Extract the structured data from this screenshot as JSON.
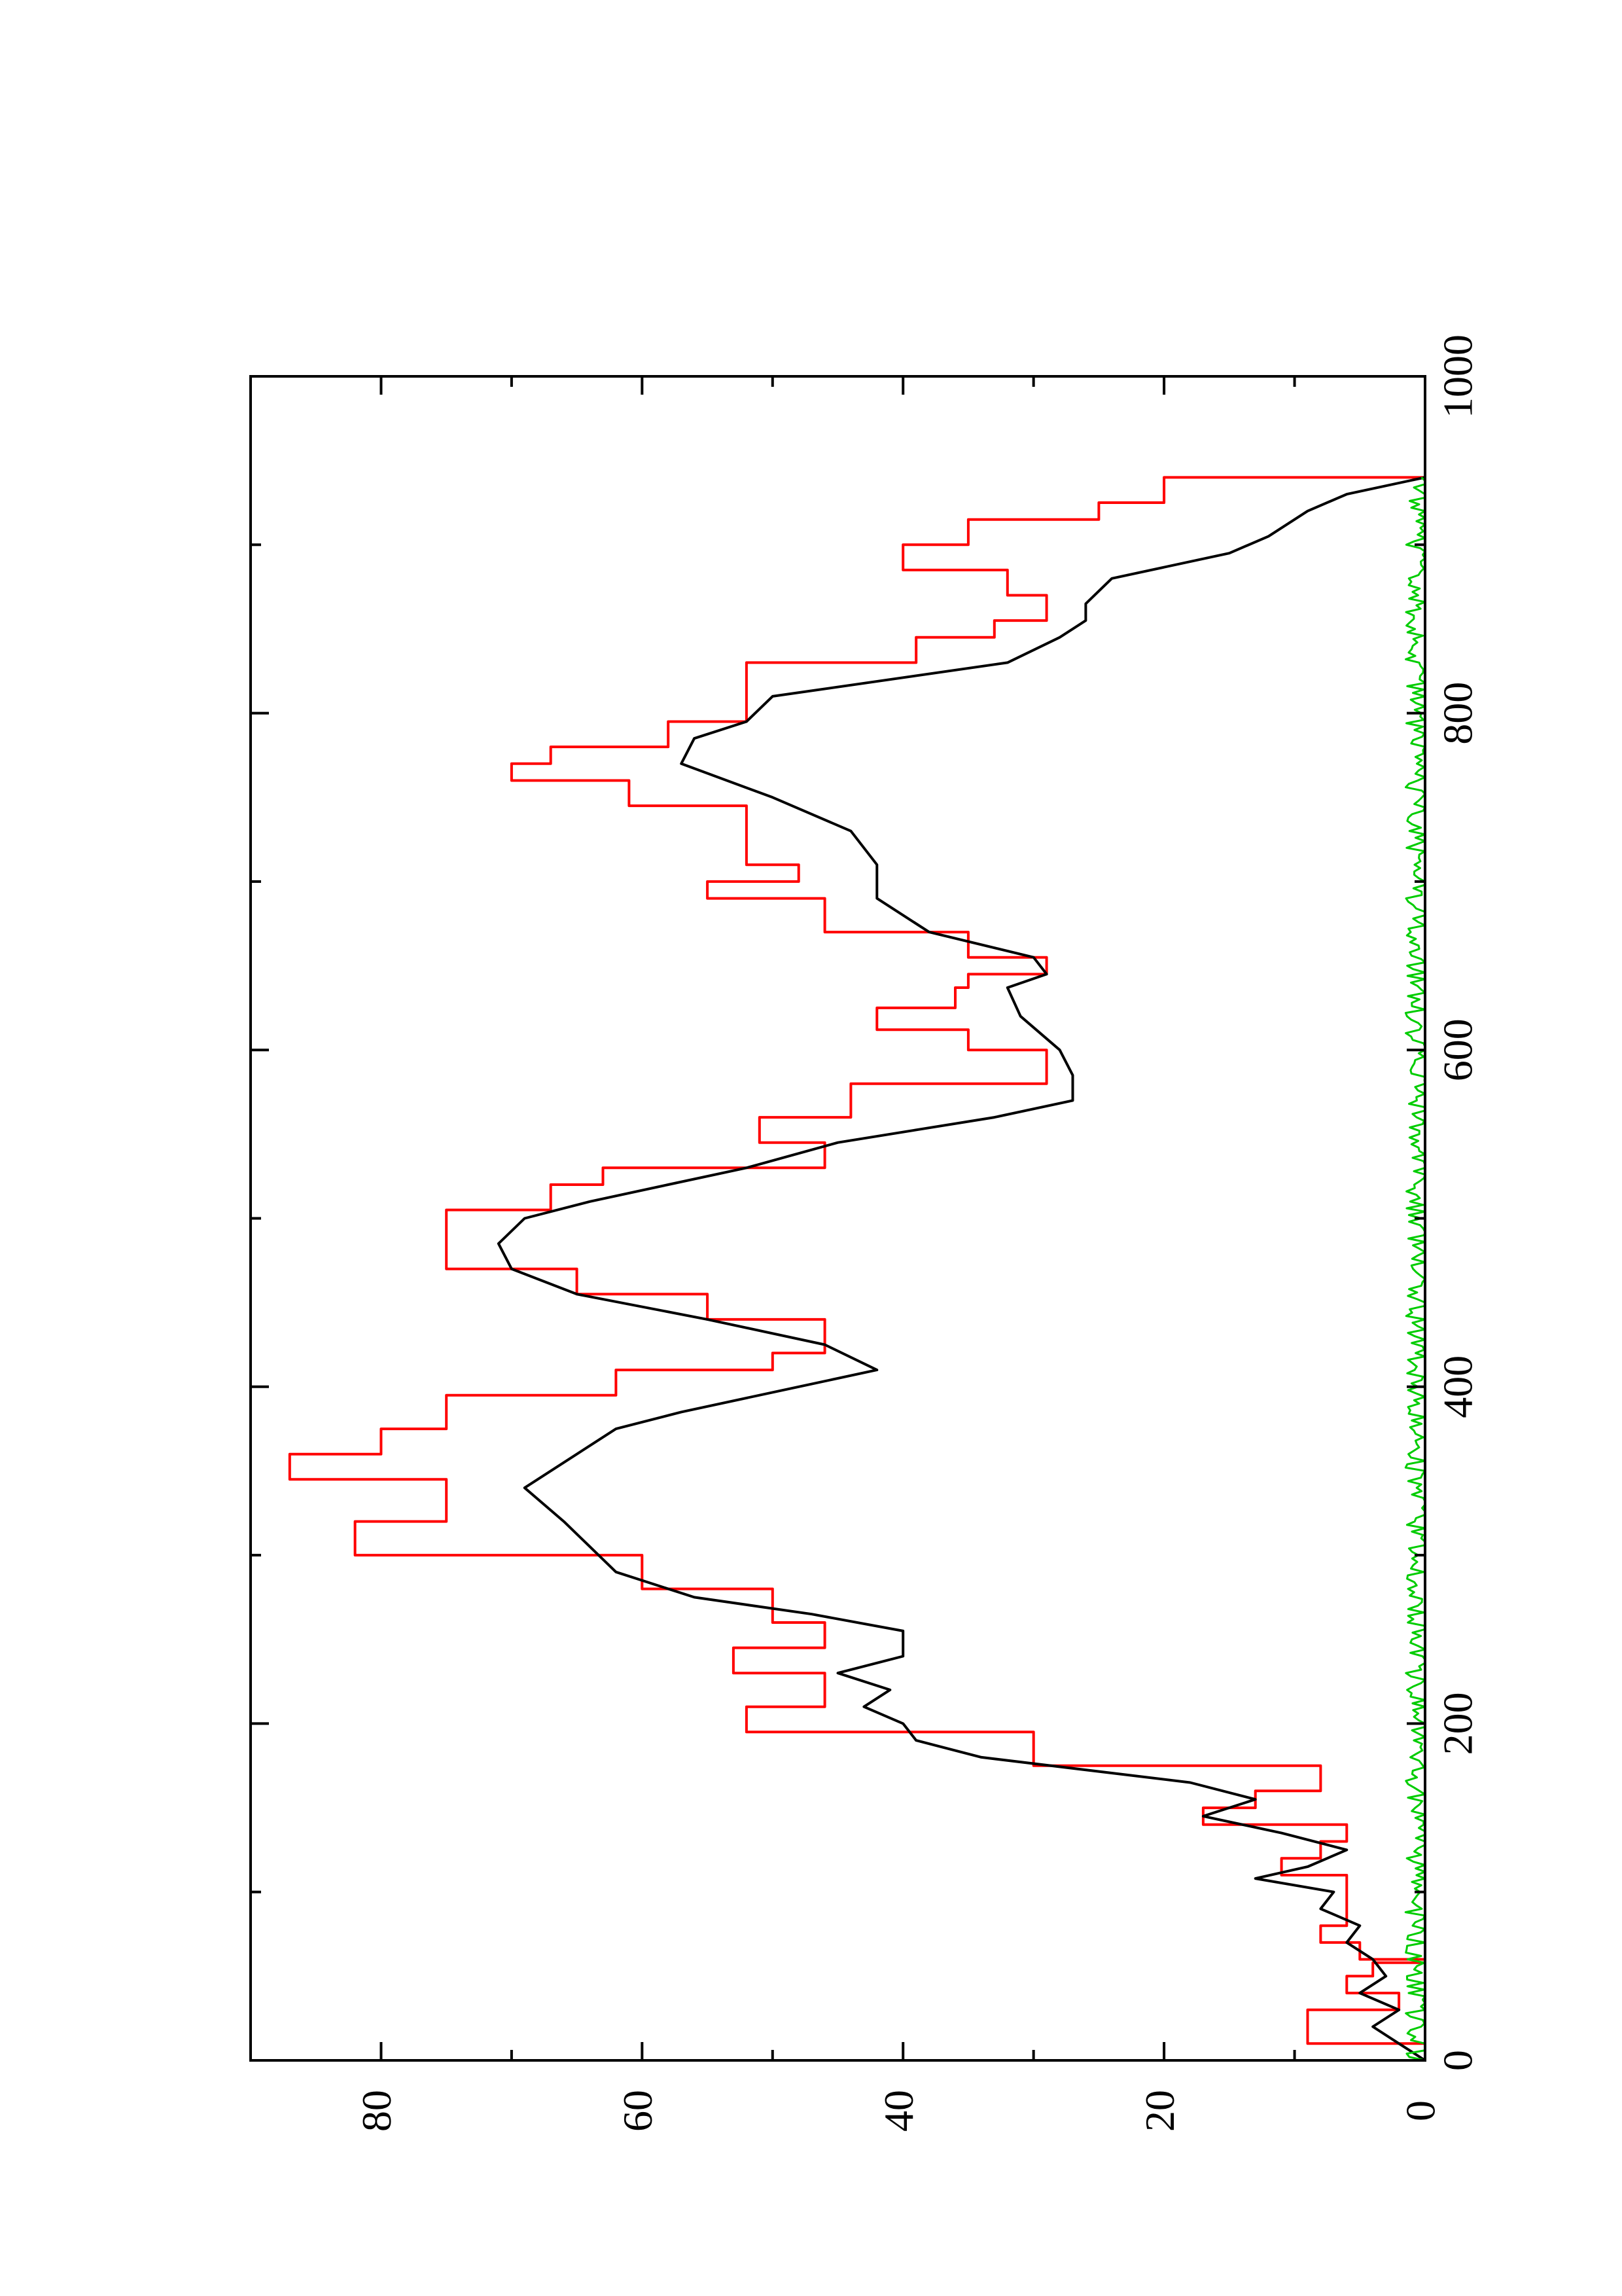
{
  "chart_data": {
    "type": "line",
    "orientation": "rotated-90-ccw",
    "title": "",
    "xlabel": "",
    "ylabel": "",
    "xlim": [
      0,
      1000
    ],
    "ylim": [
      0,
      90
    ],
    "x_ticks": [
      0,
      200,
      400,
      600,
      800,
      1000
    ],
    "y_ticks": [
      0,
      20,
      40,
      60,
      80
    ],
    "x_tick_labels": [
      "0",
      "200",
      "400",
      "600",
      "800",
      "1000"
    ],
    "y_tick_labels": [
      "0",
      "20",
      "40",
      "60",
      "80"
    ],
    "grid": false,
    "legend": "none",
    "series": [
      {
        "color": "#ff0000",
        "shape": "step",
        "points": [
          [
            0,
            0
          ],
          [
            10,
            9
          ],
          [
            20,
            9
          ],
          [
            30,
            2
          ],
          [
            40,
            6
          ],
          [
            50,
            4
          ],
          [
            58,
            0
          ],
          [
            60,
            5
          ],
          [
            70,
            8
          ],
          [
            80,
            6
          ],
          [
            90,
            6
          ],
          [
            100,
            6
          ],
          [
            110,
            11
          ],
          [
            120,
            8
          ],
          [
            130,
            6
          ],
          [
            140,
            17
          ],
          [
            150,
            13
          ],
          [
            160,
            8
          ],
          [
            175,
            30
          ],
          [
            195,
            52
          ],
          [
            210,
            46
          ],
          [
            220,
            46
          ],
          [
            230,
            53
          ],
          [
            245,
            46
          ],
          [
            260,
            50
          ],
          [
            280,
            60
          ],
          [
            300,
            82
          ],
          [
            320,
            75
          ],
          [
            335,
            75
          ],
          [
            345,
            87
          ],
          [
            360,
            80
          ],
          [
            375,
            75
          ],
          [
            395,
            62
          ],
          [
            410,
            50
          ],
          [
            420,
            46
          ],
          [
            440,
            55
          ],
          [
            455,
            65
          ],
          [
            470,
            75
          ],
          [
            490,
            75
          ],
          [
            505,
            67
          ],
          [
            520,
            63
          ],
          [
            530,
            46
          ],
          [
            545,
            51
          ],
          [
            560,
            44
          ],
          [
            580,
            29
          ],
          [
            600,
            35
          ],
          [
            612,
            42
          ],
          [
            625,
            36
          ],
          [
            637,
            35
          ],
          [
            645,
            29
          ],
          [
            655,
            35
          ],
          [
            670,
            46
          ],
          [
            690,
            55
          ],
          [
            700,
            48
          ],
          [
            710,
            52
          ],
          [
            730,
            52
          ],
          [
            745,
            61
          ],
          [
            760,
            70
          ],
          [
            770,
            67
          ],
          [
            780,
            58
          ],
          [
            795,
            52
          ],
          [
            810,
            52
          ],
          [
            830,
            39
          ],
          [
            845,
            33
          ],
          [
            855,
            29
          ],
          [
            870,
            32
          ],
          [
            885,
            40
          ],
          [
            900,
            35
          ],
          [
            915,
            25
          ],
          [
            925,
            20
          ],
          [
            940,
            0
          ]
        ]
      },
      {
        "color": "#000000",
        "shape": "line",
        "points": [
          [
            0,
            0
          ],
          [
            10,
            2
          ],
          [
            20,
            4
          ],
          [
            30,
            2
          ],
          [
            40,
            5
          ],
          [
            50,
            3
          ],
          [
            60,
            4
          ],
          [
            70,
            6
          ],
          [
            80,
            5
          ],
          [
            90,
            8
          ],
          [
            100,
            7
          ],
          [
            108,
            13
          ],
          [
            115,
            9
          ],
          [
            125,
            6
          ],
          [
            135,
            11
          ],
          [
            145,
            17
          ],
          [
            155,
            13
          ],
          [
            165,
            18
          ],
          [
            180,
            34
          ],
          [
            190,
            39
          ],
          [
            200,
            40
          ],
          [
            210,
            43
          ],
          [
            220,
            41
          ],
          [
            230,
            45
          ],
          [
            240,
            40
          ],
          [
            255,
            40
          ],
          [
            265,
            47
          ],
          [
            275,
            56
          ],
          [
            290,
            62
          ],
          [
            305,
            64
          ],
          [
            320,
            66
          ],
          [
            340,
            69
          ],
          [
            360,
            65
          ],
          [
            375,
            62
          ],
          [
            385,
            57
          ],
          [
            400,
            48
          ],
          [
            410,
            42
          ],
          [
            425,
            46
          ],
          [
            440,
            55
          ],
          [
            455,
            65
          ],
          [
            470,
            70
          ],
          [
            485,
            71
          ],
          [
            500,
            69
          ],
          [
            510,
            64
          ],
          [
            520,
            58
          ],
          [
            530,
            52
          ],
          [
            545,
            45
          ],
          [
            560,
            33
          ],
          [
            570,
            27
          ],
          [
            585,
            27
          ],
          [
            600,
            28
          ],
          [
            620,
            31
          ],
          [
            637,
            32
          ],
          [
            645,
            29
          ],
          [
            655,
            30
          ],
          [
            670,
            38
          ],
          [
            690,
            42
          ],
          [
            710,
            42
          ],
          [
            730,
            44
          ],
          [
            750,
            50
          ],
          [
            770,
            57
          ],
          [
            785,
            56
          ],
          [
            795,
            52
          ],
          [
            810,
            50
          ],
          [
            830,
            32
          ],
          [
            845,
            28
          ],
          [
            855,
            26
          ],
          [
            865,
            26
          ],
          [
            880,
            24
          ],
          [
            895,
            15
          ],
          [
            905,
            12
          ],
          [
            920,
            9
          ],
          [
            930,
            6
          ],
          [
            940,
            0
          ]
        ]
      },
      {
        "color": "#00cc00",
        "shape": "noise",
        "mean": 0.6,
        "amplitude": 0.9,
        "x_range": [
          0,
          940
        ]
      }
    ]
  }
}
